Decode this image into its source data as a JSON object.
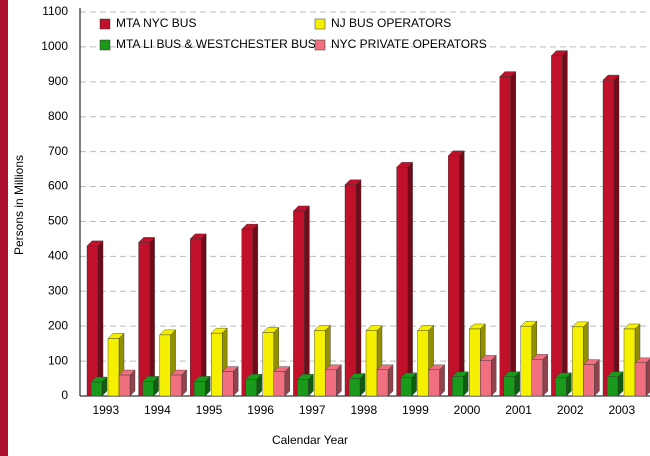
{
  "chart_data": {
    "type": "bar3d",
    "y_label": "Persons in Millions",
    "x_label": "Calendar Year",
    "categories": [
      "1993",
      "1994",
      "1995",
      "1996",
      "1997",
      "1998",
      "1999",
      "2000",
      "2001",
      "2002",
      "2003"
    ],
    "series": [
      {
        "name": "MTA NYC BUS",
        "color": "#c0102a",
        "values": [
          430,
          440,
          450,
          478,
          530,
          605,
          655,
          688,
          915,
          975,
          905
        ]
      },
      {
        "name": "NJ BUS OPERATORS",
        "color": "#f5f000",
        "values": [
          165,
          175,
          180,
          182,
          188,
          187,
          188,
          192,
          200,
          198,
          192
        ]
      },
      {
        "name": "MTA LI BUS & WESTCHESTER BUS",
        "color": "#1a9a1a",
        "values": [
          40,
          42,
          42,
          48,
          48,
          50,
          52,
          55,
          55,
          52,
          55
        ]
      },
      {
        "name": "NYC PRIVATE OPERATORS",
        "color": "#f07080",
        "values": [
          60,
          60,
          70,
          70,
          75,
          75,
          75,
          102,
          105,
          90,
          95
        ]
      }
    ],
    "ylim": [
      0,
      1100
    ],
    "yticks": [
      0,
      100,
      200,
      300,
      400,
      500,
      600,
      700,
      800,
      900,
      1000,
      1100
    ],
    "grid": true,
    "legend": "top"
  }
}
